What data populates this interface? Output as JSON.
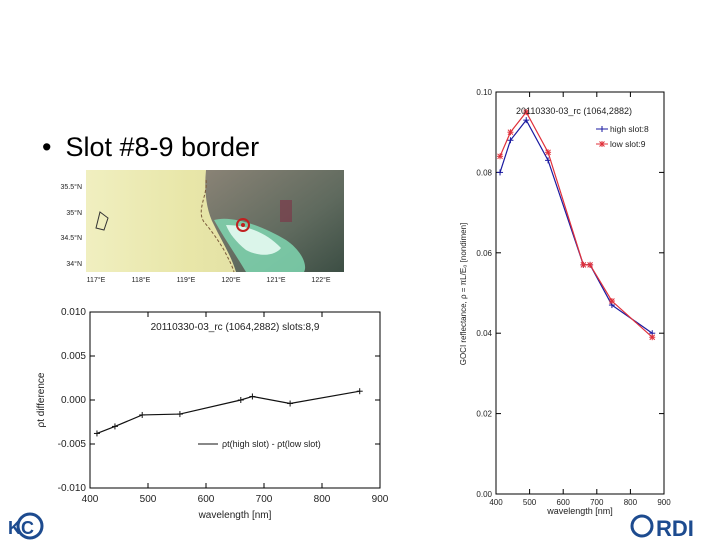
{
  "slide": {
    "bullet_text": "Slot #8-9 border",
    "colors": {
      "high": "#1a1aa0",
      "low": "#e0303a",
      "line_black": "#111111"
    }
  },
  "map": {
    "lat_labels": [
      "35.5°N",
      "35°N",
      "34.5°N",
      "34°N"
    ],
    "lon_labels": [
      "117°E",
      "118°E",
      "119°E",
      "120°E",
      "121°E",
      "122°E"
    ]
  },
  "logos": {
    "left_text": "KC",
    "right_text": "RDI"
  },
  "chart_data": [
    {
      "type": "line",
      "title": "20110330-03_rc    (1064,2882) slots:8,9",
      "xlabel": "wavelength [nm]",
      "ylabel": "ρt difference",
      "xlim": [
        400,
        900
      ],
      "ylim": [
        -0.01,
        0.01
      ],
      "x_ticks": [
        "400",
        "500",
        "600",
        "700",
        "800",
        "900"
      ],
      "y_ticks": [
        "-0.010",
        "-0.005",
        "0.000",
        "0.005",
        "0.010"
      ],
      "legend": "ρt(high slot) - ρt(low slot)",
      "legend_position": "lower-right",
      "series": [
        {
          "x": [
            412,
            443,
            490,
            555,
            660,
            680,
            745,
            865
          ],
          "y": [
            -0.0038,
            -0.003,
            -0.0017,
            -0.0016,
            0.0,
            0.0004,
            -0.0004,
            0.001
          ]
        }
      ]
    },
    {
      "type": "line",
      "title": "20110330-03_rc    (1064,2882)",
      "xlabel": "wavelength [nm]",
      "ylabel": "GOCI reflectance, ρ = πL/E₀ [nondimen]",
      "xlim": [
        400,
        900
      ],
      "ylim": [
        0.0,
        0.1
      ],
      "x_ticks": [
        "400",
        "500",
        "600",
        "700",
        "800",
        "900"
      ],
      "y_ticks": [
        "0.00",
        "0.02",
        "0.04",
        "0.06",
        "0.08",
        "0.10"
      ],
      "legend_position": "top-right",
      "x": [
        412,
        443,
        490,
        555,
        660,
        680,
        745,
        865
      ],
      "series": [
        {
          "name": "high slot:8",
          "y": [
            0.08,
            0.088,
            0.093,
            0.083,
            0.057,
            0.057,
            0.047,
            0.04
          ]
        },
        {
          "name": "low slot:9",
          "y": [
            0.084,
            0.09,
            0.095,
            0.085,
            0.057,
            0.057,
            0.048,
            0.039
          ]
        }
      ]
    }
  ]
}
